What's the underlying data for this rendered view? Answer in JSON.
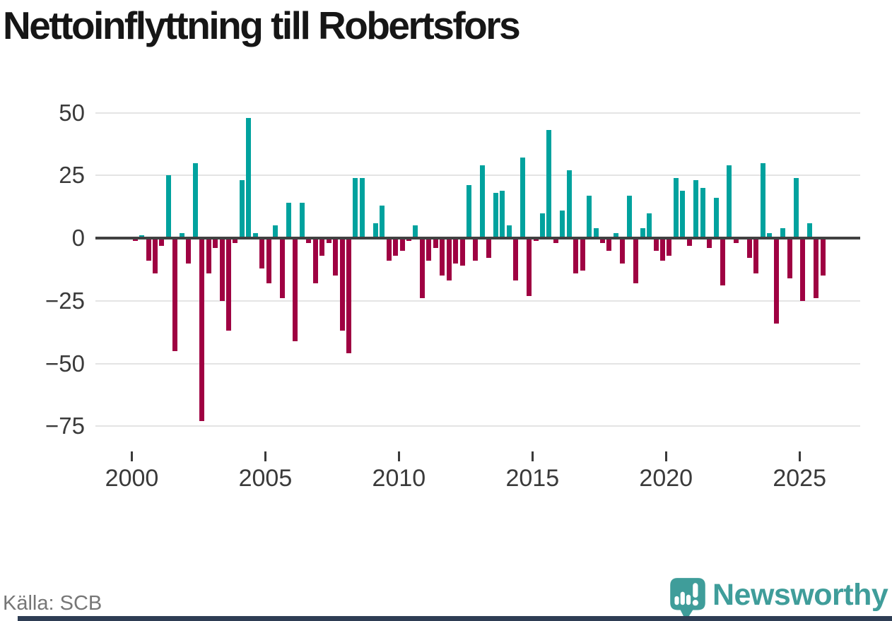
{
  "title": "Nettoinflyttning till Robertsfors",
  "source": "Källa: SCB",
  "branding": {
    "name": "Newsworthy"
  },
  "colors": {
    "positive": "#00a29e",
    "negative": "#9f0142",
    "zero_line": "#414141",
    "gridline": "#e4e4e4",
    "brand_teal": "#3f9d9a",
    "footer_strip": "#2e3d54"
  },
  "chart_data": {
    "type": "bar",
    "title": "Nettoinflyttning till Robertsfors",
    "frequency": "quarterly",
    "start_period": "2000-Q1",
    "end_period": "2025-Q4",
    "xlabel": "",
    "ylabel": "",
    "ylim": [
      -80,
      55
    ],
    "grid": "horizontal",
    "y_ticks": [
      50,
      25,
      0,
      -25,
      -50,
      -75
    ],
    "y_tick_labels": [
      "50",
      "25",
      "0",
      "−25",
      "−50",
      "−75"
    ],
    "x_ticks": [
      2000,
      2005,
      2010,
      2015,
      2020,
      2025
    ],
    "x_tick_labels": [
      "2000",
      "2005",
      "2010",
      "2015",
      "2020",
      "2025"
    ],
    "values": [
      -1,
      1,
      -9,
      -14,
      -3,
      25,
      -45,
      2,
      -10,
      30,
      -73,
      -14,
      -4,
      -25,
      -37,
      -2,
      23,
      48,
      2,
      -12,
      -18,
      5,
      -24,
      14,
      -41,
      14,
      -2,
      -18,
      -7,
      -2,
      -15,
      -37,
      -46,
      24,
      24,
      0,
      6,
      13,
      -9,
      -7,
      -5,
      -1,
      5,
      -24,
      -9,
      -4,
      -15,
      -17,
      -10,
      -11,
      21,
      -9,
      29,
      -8,
      18,
      19,
      5,
      -17,
      32,
      -23,
      -1,
      10,
      43,
      -2,
      11,
      27,
      -14,
      -13,
      17,
      4,
      -2,
      -5,
      2,
      -10,
      17,
      -18,
      4,
      10,
      -5,
      -9,
      -7,
      24,
      19,
      -3,
      23,
      20,
      -4,
      16,
      -19,
      29,
      -2,
      0,
      -8,
      -14,
      30,
      2,
      -34,
      4,
      -16,
      24,
      -25,
      6,
      -24,
      -15
    ]
  }
}
